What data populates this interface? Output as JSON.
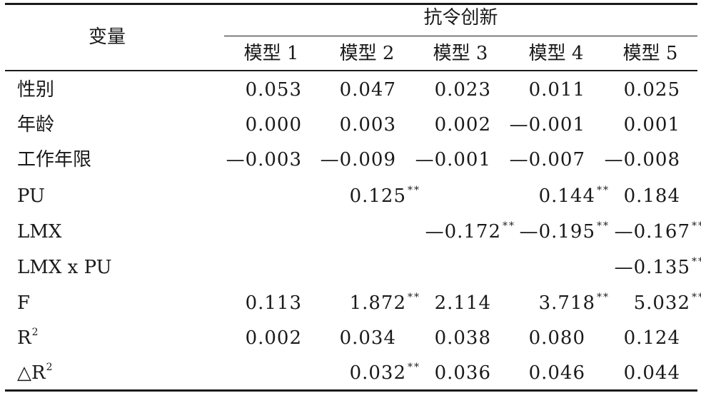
{
  "header": {
    "variable_label": "变量",
    "group_label": "抗令创新",
    "models": [
      "模型 1",
      "模型 2",
      "模型 3",
      "模型 4",
      "模型 5"
    ]
  },
  "rows": [
    {
      "label": "性别",
      "cells": [
        [
          "0.053",
          ""
        ],
        [
          "0.047",
          ""
        ],
        [
          "0.023",
          ""
        ],
        [
          "0.011",
          ""
        ],
        [
          "0.025",
          ""
        ]
      ]
    },
    {
      "label": "年龄",
      "cells": [
        [
          "0.000",
          ""
        ],
        [
          "0.003",
          ""
        ],
        [
          "0.002",
          ""
        ],
        [
          "—0.001",
          ""
        ],
        [
          "0.001",
          ""
        ]
      ]
    },
    {
      "label": "工作年限",
      "cells": [
        [
          "—0.003",
          ""
        ],
        [
          "—0.009",
          ""
        ],
        [
          "—0.001",
          ""
        ],
        [
          "—0.007",
          ""
        ],
        [
          "—0.008",
          ""
        ]
      ]
    },
    {
      "label": "PU",
      "cells": [
        [
          "",
          ""
        ],
        [
          "0.125",
          "**"
        ],
        [
          "",
          ""
        ],
        [
          "0.144",
          "**"
        ],
        [
          "0.184",
          ""
        ]
      ]
    },
    {
      "label": "LMX",
      "cells": [
        [
          "",
          ""
        ],
        [
          "",
          ""
        ],
        [
          "—0.172",
          "**"
        ],
        [
          "—0.195",
          "**"
        ],
        [
          "—0.167",
          "**"
        ]
      ]
    },
    {
      "label": "LMX x PU",
      "cells": [
        [
          "",
          ""
        ],
        [
          "",
          ""
        ],
        [
          "",
          ""
        ],
        [
          "",
          ""
        ],
        [
          "—0.135",
          "**"
        ]
      ]
    },
    {
      "label": "F",
      "cells": [
        [
          "0.113",
          ""
        ],
        [
          "1.872",
          "**"
        ],
        [
          "2.114",
          ""
        ],
        [
          "3.718",
          "**"
        ],
        [
          "5.032",
          "**"
        ]
      ]
    },
    {
      "label": "R",
      "label_sup": "2",
      "cells": [
        [
          "0.002",
          ""
        ],
        [
          "0.034",
          ""
        ],
        [
          "0.038",
          ""
        ],
        [
          "0.080",
          ""
        ],
        [
          "0.124",
          ""
        ]
      ]
    },
    {
      "label": "△R",
      "label_sup": "2",
      "cells": [
        [
          "",
          ""
        ],
        [
          "0.032",
          "**"
        ],
        [
          "0.036",
          ""
        ],
        [
          "0.046",
          ""
        ],
        [
          "0.044",
          ""
        ]
      ]
    }
  ]
}
